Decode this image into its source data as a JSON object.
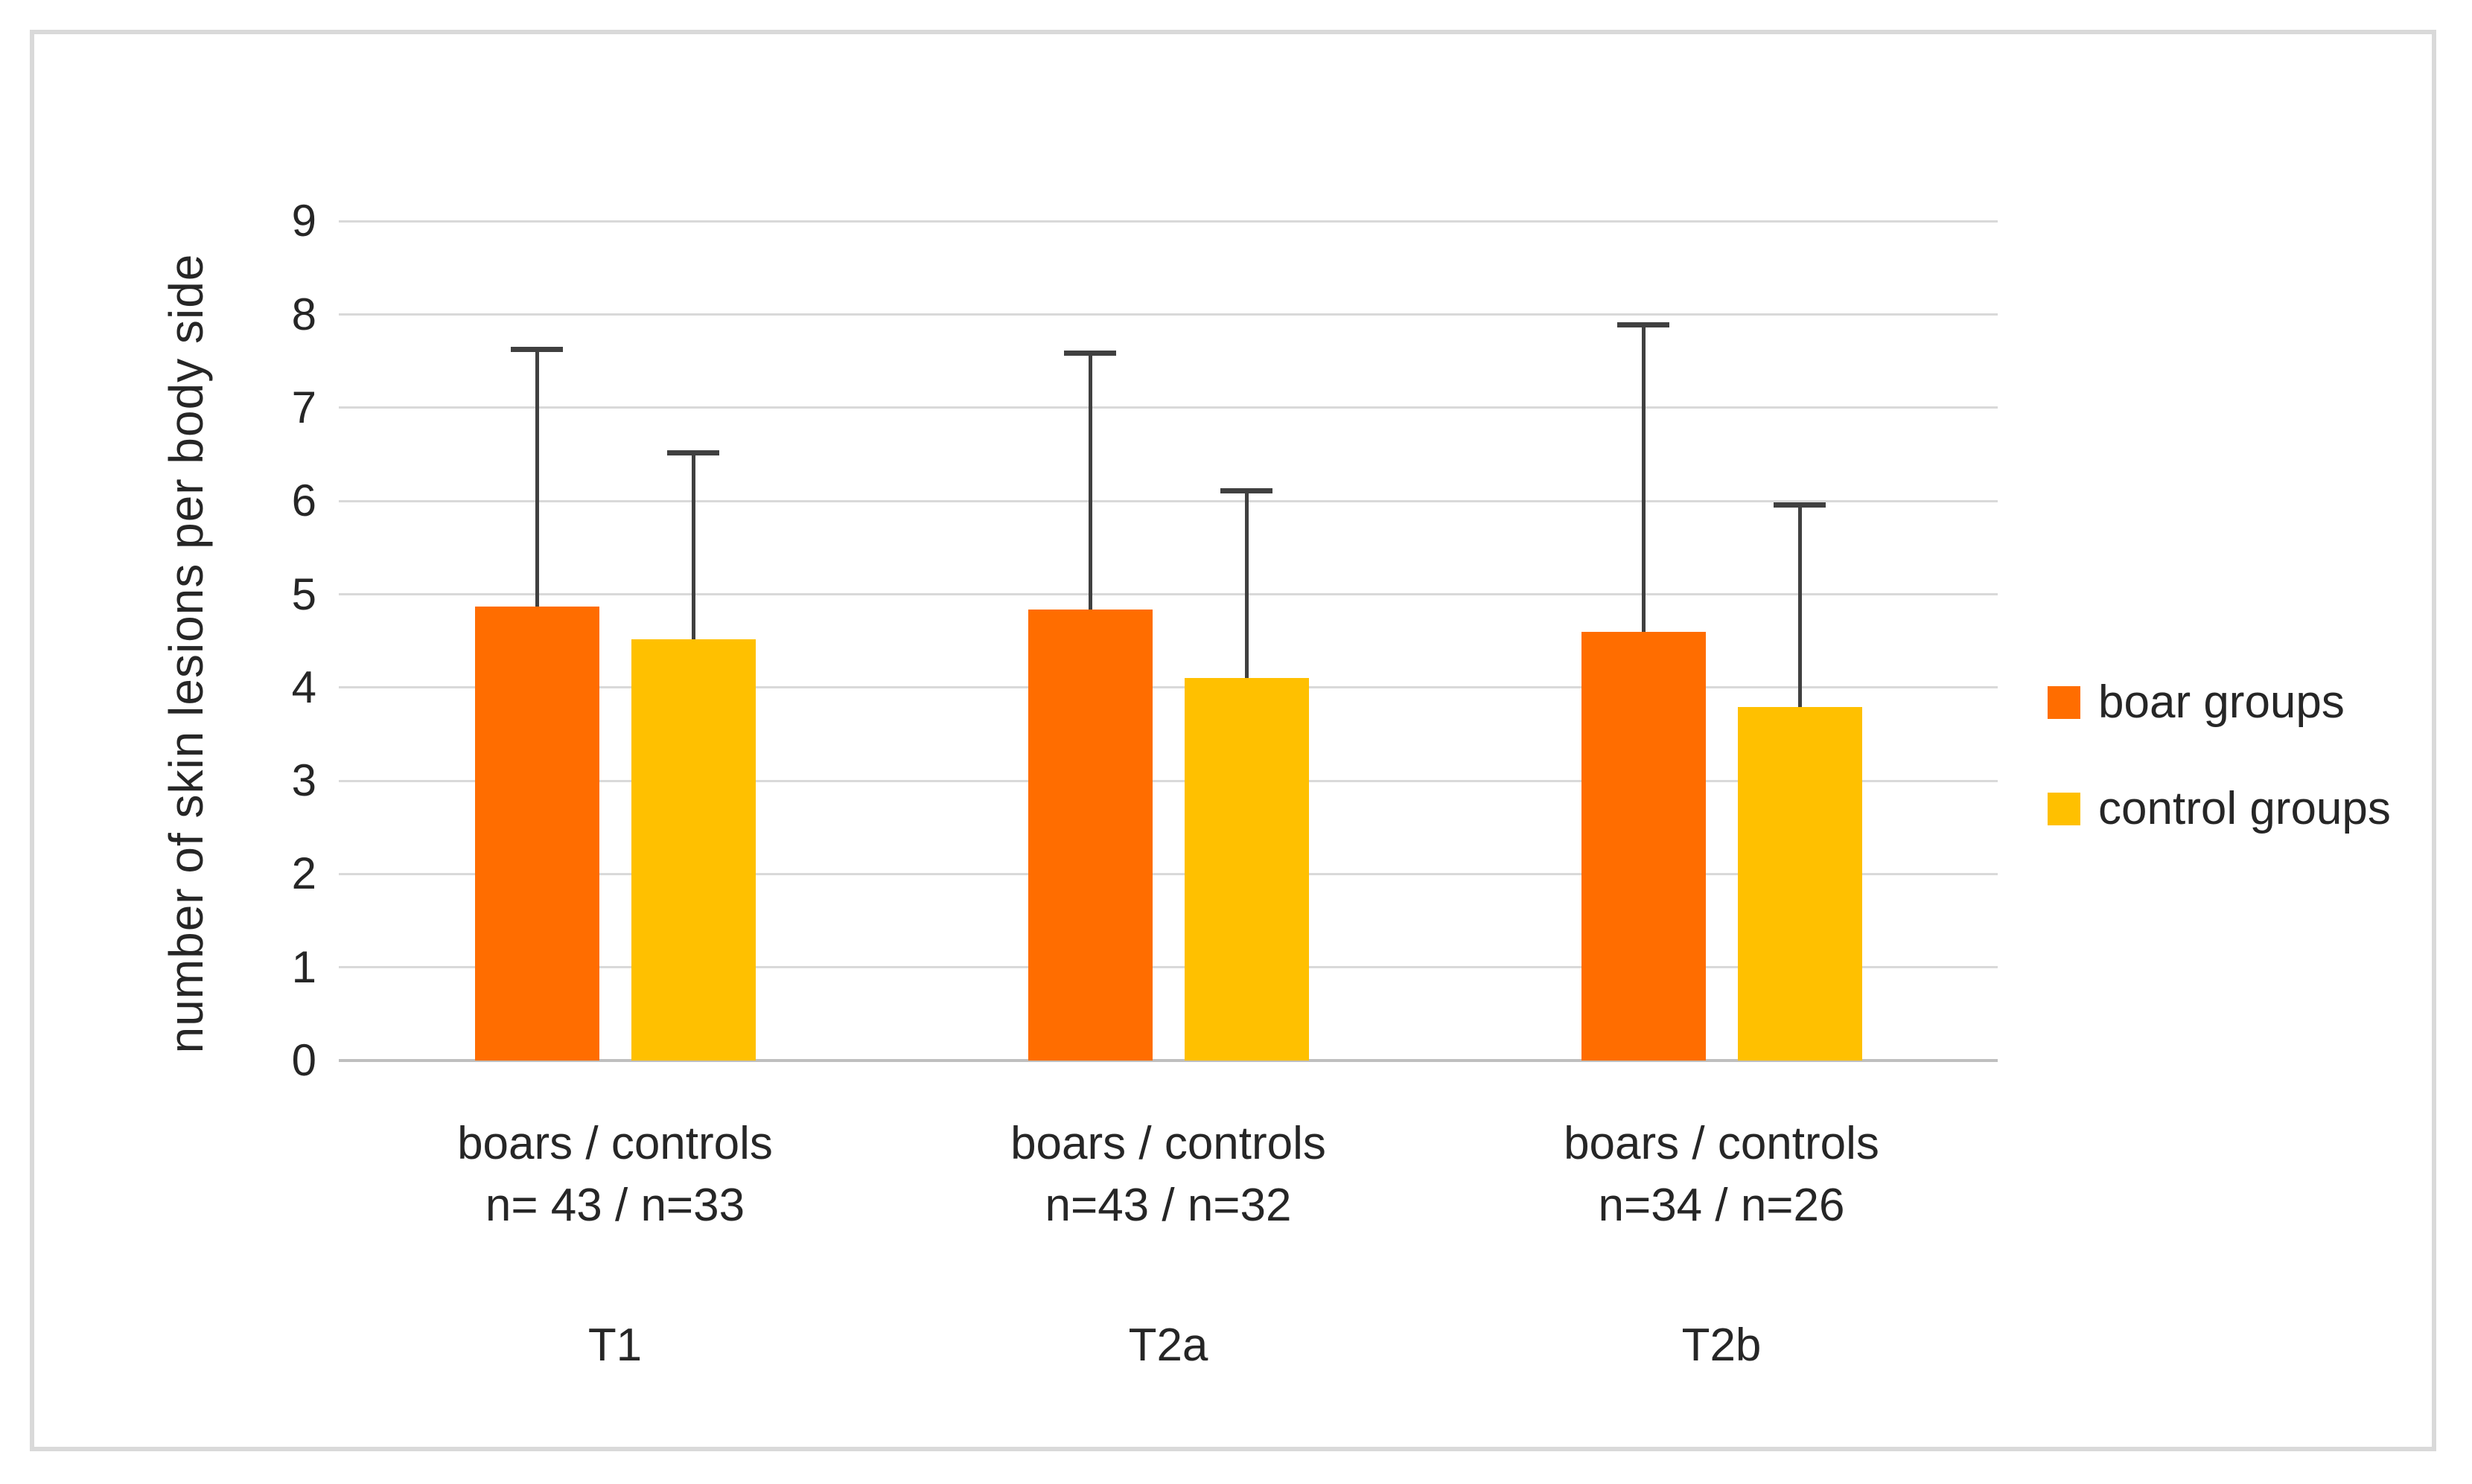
{
  "chart_data": {
    "type": "bar",
    "title": "",
    "ylabel": "number of skin lesions per body side",
    "xlabel": "",
    "ylim": [
      0,
      9
    ],
    "ytick_interval": 1,
    "yticks": [
      0,
      1,
      2,
      3,
      4,
      5,
      6,
      7,
      8,
      9
    ],
    "grid": true,
    "legend_position": "right",
    "categories": [
      "T1",
      "T2a",
      "T2b"
    ],
    "category_labels_line1": [
      "boars / controls",
      "boars / controls",
      "boars / controls"
    ],
    "category_labels_line2": [
      "n= 43 / n=33",
      "n=43 / n=32",
      "n=34 / n=26"
    ],
    "series": [
      {
        "name": "boar groups",
        "color": "#FF6D00",
        "values": [
          4.87,
          4.84,
          4.6
        ],
        "error_bar_tops": [
          7.63,
          7.59,
          7.89
        ]
      },
      {
        "name": "control groups",
        "color": "#FFC000",
        "values": [
          4.52,
          4.1,
          3.79
        ],
        "error_bar_tops": [
          6.52,
          6.11,
          5.96
        ]
      }
    ],
    "error_bars": "upper whisker only with horizontal cap"
  },
  "colors": {
    "gridline": "#d9d9d9",
    "baseline": "#bfbfbf",
    "error_bar": "#404040",
    "text": "#262626",
    "figure_border": "#d9d9d9",
    "background": "#ffffff"
  }
}
